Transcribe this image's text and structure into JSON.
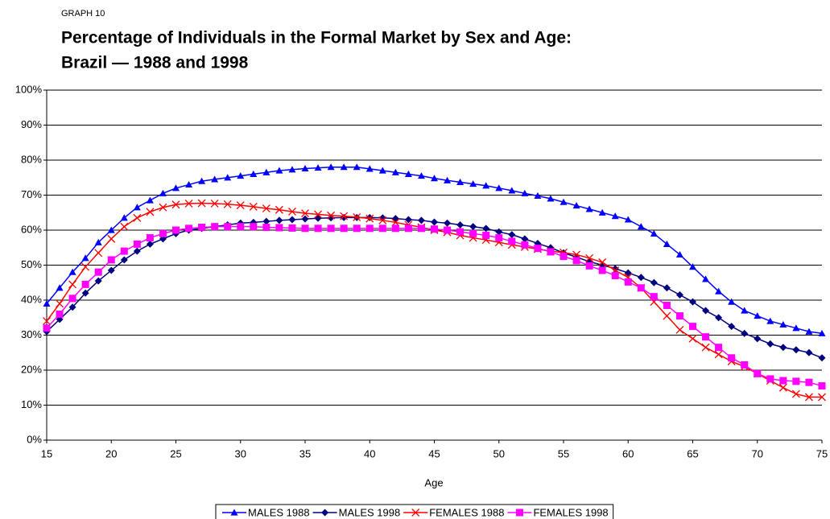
{
  "chart_data": {
    "type": "line",
    "kicker": "GRAPH 10",
    "title": "Percentage of Individuals in the Formal Market by Sex and Age:",
    "subtitle": "Brazil — 1988 and 1998",
    "xlabel": "Age",
    "x": [
      15,
      16,
      17,
      18,
      19,
      20,
      21,
      22,
      23,
      24,
      25,
      26,
      27,
      28,
      29,
      30,
      31,
      32,
      33,
      34,
      35,
      36,
      37,
      38,
      39,
      40,
      41,
      42,
      43,
      44,
      45,
      46,
      47,
      48,
      49,
      50,
      51,
      52,
      53,
      54,
      55,
      56,
      57,
      58,
      59,
      60,
      61,
      62,
      63,
      64,
      65,
      66,
      67,
      68,
      69,
      70,
      71,
      72,
      73,
      74,
      75
    ],
    "xlim": [
      15,
      75
    ],
    "xticks": [
      15,
      20,
      25,
      30,
      35,
      40,
      45,
      50,
      55,
      60,
      65,
      70,
      75
    ],
    "ylim": [
      0,
      100
    ],
    "yticks": [
      {
        "value": 0,
        "label": "0%"
      },
      {
        "value": 10,
        "label": "10%"
      },
      {
        "value": 20,
        "label": "20%"
      },
      {
        "value": 30,
        "label": "30%"
      },
      {
        "value": 40,
        "label": "40%"
      },
      {
        "value": 50,
        "label": "50%"
      },
      {
        "value": 60,
        "label": "60%"
      },
      {
        "value": 70,
        "label": "70%"
      },
      {
        "value": 80,
        "label": "80%"
      },
      {
        "value": 90,
        "label": "90%"
      },
      {
        "value": 100,
        "label": "100%"
      }
    ],
    "grid": true,
    "legend": "bottom",
    "series": [
      {
        "name": "MALES 1988",
        "color": "#0000ff",
        "marker": "triangle",
        "values": [
          39,
          43.5,
          48,
          52,
          56.5,
          60,
          63.5,
          66.5,
          68.5,
          70.5,
          72,
          73,
          74,
          74.5,
          75,
          75.5,
          76,
          76.5,
          77,
          77.3,
          77.6,
          77.8,
          78,
          78,
          78,
          77.5,
          77,
          76.5,
          76,
          75.5,
          74.8,
          74.2,
          73.7,
          73.2,
          72.7,
          72,
          71.3,
          70.5,
          69.8,
          69,
          68,
          67,
          66,
          65,
          64,
          63,
          61,
          59,
          56,
          53,
          49.5,
          46,
          42.5,
          39.5,
          37,
          35.5,
          34,
          33,
          32,
          31,
          30.5
        ]
      },
      {
        "name": "MALES 1998",
        "color": "#000080",
        "marker": "diamond",
        "values": [
          31,
          34.5,
          38,
          42,
          45.5,
          48.5,
          51.5,
          54,
          56,
          57.5,
          59,
          60,
          60.5,
          61,
          61.5,
          62,
          62.2,
          62.5,
          62.8,
          63,
          63.2,
          63.4,
          63.5,
          63.6,
          63.6,
          63.6,
          63.5,
          63.3,
          63,
          62.8,
          62.3,
          62,
          61.5,
          61,
          60.5,
          59.5,
          58.7,
          57.5,
          56.2,
          55,
          53.5,
          52.3,
          51,
          50,
          49,
          47.8,
          46.5,
          45,
          43.5,
          41.5,
          39.5,
          37,
          35,
          32.5,
          30.5,
          29,
          27.5,
          26.5,
          25.8,
          25,
          23.5
        ]
      },
      {
        "name": "FEMALES 1988",
        "color": "#ff0000",
        "marker": "x",
        "values": [
          34,
          39,
          44.5,
          49.5,
          53.5,
          57.5,
          61,
          63.5,
          65.2,
          66.5,
          67.3,
          67.6,
          67.7,
          67.6,
          67.4,
          67.1,
          66.7,
          66.2,
          65.8,
          65.3,
          64.8,
          64.5,
          64.2,
          64,
          63.7,
          63.3,
          62.8,
          62.2,
          61.5,
          60.8,
          60,
          59.4,
          58.5,
          57.8,
          57.2,
          56.5,
          55.8,
          55.2,
          54.6,
          54,
          53.6,
          53,
          52,
          50.8,
          48.5,
          46.5,
          43.5,
          39.5,
          35.5,
          31.5,
          29,
          26.5,
          24.5,
          22.5,
          21,
          19,
          17,
          15,
          13.2,
          12.3,
          12.3
        ]
      },
      {
        "name": "FEMALES 1998",
        "color": "#ff00ff",
        "marker": "square",
        "values": [
          32,
          36,
          40.5,
          44.5,
          48,
          51.5,
          54,
          56,
          57.8,
          59,
          60,
          60.5,
          60.8,
          61,
          61,
          61,
          61,
          60.8,
          60.7,
          60.6,
          60.5,
          60.5,
          60.5,
          60.5,
          60.5,
          60.5,
          60.5,
          60.5,
          60.5,
          60.5,
          60.3,
          60,
          59.5,
          59,
          58.5,
          57.8,
          56.8,
          55.8,
          54.8,
          53.8,
          52.5,
          51.3,
          49.8,
          48.5,
          47,
          45.2,
          43.5,
          41,
          38.5,
          35.5,
          32.5,
          29.5,
          26.5,
          23.5,
          21.5,
          19,
          17.5,
          17,
          16.8,
          16.5,
          15.5
        ]
      }
    ]
  }
}
